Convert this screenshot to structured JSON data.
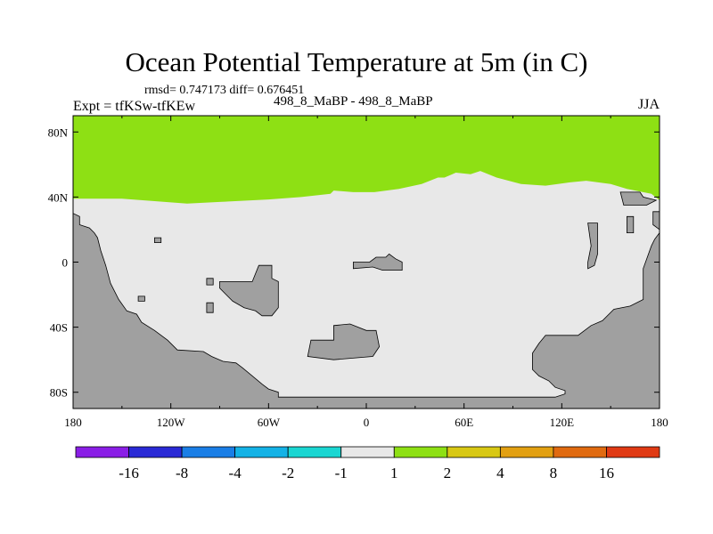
{
  "chart_data": {
    "type": "heatmap",
    "title": "Ocean Potential Temperature at 5m (in C)",
    "stats_text": "rmsd= 0.747173 diff= 0.676451",
    "left_label": "Expt = tfKSw-tfKEw",
    "center_label": "498_8_MaBP - 498_8_MaBP",
    "right_label": "JJA",
    "x_ticks": [
      {
        "value": -180,
        "label": "180"
      },
      {
        "value": -120,
        "label": "120W"
      },
      {
        "value": -60,
        "label": "60W"
      },
      {
        "value": 0,
        "label": "0"
      },
      {
        "value": 60,
        "label": "60E"
      },
      {
        "value": 120,
        "label": "120E"
      },
      {
        "value": 180,
        "label": "180"
      }
    ],
    "y_ticks": [
      {
        "value": 80,
        "label": "80N"
      },
      {
        "value": 40,
        "label": "40N"
      },
      {
        "value": 0,
        "label": "0"
      },
      {
        "value": -40,
        "label": "40S"
      },
      {
        "value": -80,
        "label": "80S"
      }
    ],
    "xlim": [
      -180,
      180
    ],
    "ylim": [
      -90,
      90
    ],
    "colorbar": {
      "colors": [
        "#8a1ee6",
        "#2a2ad6",
        "#1a7ee6",
        "#14b2e6",
        "#1ad6d2",
        "#e8e8e8",
        "#8ee014",
        "#d8c814",
        "#e2a012",
        "#e06a10",
        "#e03a14"
      ],
      "labels": [
        "-16",
        "-8",
        "-4",
        "-2",
        "-1",
        "1",
        "2",
        "4",
        "8",
        "16"
      ]
    },
    "regions": {
      "warm_north_color": "#8ee014",
      "ocean_color": "#e8e8e8",
      "land_color": "#a0a0a0",
      "north_boundary": [
        [
          -180,
          39
        ],
        [
          -150,
          39
        ],
        [
          -130,
          37.5
        ],
        [
          -110,
          36
        ],
        [
          -90,
          37
        ],
        [
          -60,
          38.5
        ],
        [
          -40,
          40
        ],
        [
          -22,
          42
        ],
        [
          -20,
          44
        ],
        [
          -8,
          43
        ],
        [
          5,
          43
        ],
        [
          20,
          45
        ],
        [
          34,
          48
        ],
        [
          44,
          52
        ],
        [
          48,
          52
        ],
        [
          55,
          55
        ],
        [
          64,
          54
        ],
        [
          70,
          56
        ],
        [
          80,
          52
        ],
        [
          95,
          48
        ],
        [
          110,
          47
        ],
        [
          125,
          49
        ],
        [
          135,
          50
        ],
        [
          150,
          48
        ],
        [
          160,
          45
        ],
        [
          175,
          42
        ],
        [
          180,
          38
        ]
      ],
      "land_west": [
        [
          -180,
          30
        ],
        [
          -176,
          28
        ],
        [
          -176,
          23
        ],
        [
          -170,
          21
        ],
        [
          -167,
          18
        ],
        [
          -165,
          15
        ],
        [
          -163,
          7
        ],
        [
          -160,
          -2
        ],
        [
          -157,
          -13
        ],
        [
          -152,
          -23
        ],
        [
          -147,
          -30
        ],
        [
          -141,
          -32
        ],
        [
          -138,
          -37
        ],
        [
          -130,
          -42
        ],
        [
          -122,
          -48
        ],
        [
          -116,
          -54
        ],
        [
          -100,
          -55
        ],
        [
          -95,
          -58
        ],
        [
          -88,
          -61
        ],
        [
          -80,
          -62
        ],
        [
          -76,
          -65
        ],
        [
          -70,
          -70
        ],
        [
          -64,
          -75
        ],
        [
          -60,
          -78
        ],
        [
          -54,
          -80
        ],
        [
          -54,
          -83
        ],
        [
          116,
          -83
        ],
        [
          122,
          -81
        ],
        [
          122,
          -79
        ],
        [
          116,
          -77
        ],
        [
          112,
          -73
        ],
        [
          106,
          -70
        ],
        [
          102,
          -66
        ],
        [
          102,
          -56
        ],
        [
          106,
          -50
        ],
        [
          110,
          -45
        ],
        [
          130,
          -45
        ],
        [
          138,
          -39
        ],
        [
          145,
          -36
        ],
        [
          152,
          -29
        ],
        [
          162,
          -27
        ],
        [
          170,
          -23
        ],
        [
          170,
          -4
        ],
        [
          175,
          10
        ],
        [
          177,
          14
        ],
        [
          180,
          18
        ],
        [
          180,
          -90
        ],
        [
          -180,
          -90
        ]
      ],
      "land_north_east": [
        [
          156,
          43
        ],
        [
          168,
          43
        ],
        [
          170,
          40
        ],
        [
          178,
          38
        ],
        [
          172,
          35
        ],
        [
          158,
          35
        ]
      ],
      "land_east_coast": [
        [
          176,
          31
        ],
        [
          180,
          31
        ],
        [
          180,
          20
        ],
        [
          176,
          23
        ]
      ],
      "islands": [
        [
          [
            -130,
            15
          ],
          [
            -126,
            15
          ],
          [
            -126,
            12
          ],
          [
            -130,
            12
          ]
        ],
        [
          [
            -140,
            -21
          ],
          [
            -136,
            -21
          ],
          [
            -136,
            -24
          ],
          [
            -140,
            -24
          ]
        ],
        [
          [
            -98,
            -10
          ],
          [
            -94,
            -10
          ],
          [
            -94,
            -14
          ],
          [
            -98,
            -14
          ]
        ],
        [
          [
            -98,
            -25
          ],
          [
            -94,
            -25
          ],
          [
            -94,
            -31
          ],
          [
            -98,
            -31
          ]
        ],
        [
          [
            -90,
            -12
          ],
          [
            -70,
            -12
          ],
          [
            -66,
            -2
          ],
          [
            -58,
            -2
          ],
          [
            -58,
            -10
          ],
          [
            -54,
            -12
          ],
          [
            -54,
            -28
          ],
          [
            -58,
            -33
          ],
          [
            -64,
            -33
          ],
          [
            -68,
            -30
          ],
          [
            -75,
            -28
          ],
          [
            -82,
            -24
          ],
          [
            -86,
            -20
          ],
          [
            -90,
            -16
          ]
        ],
        [
          [
            -8,
            0
          ],
          [
            2,
            0
          ],
          [
            6,
            3
          ],
          [
            12,
            3
          ],
          [
            14,
            5
          ],
          [
            18,
            2
          ],
          [
            22,
            0
          ],
          [
            22,
            -5
          ],
          [
            10,
            -5
          ],
          [
            4,
            -3
          ],
          [
            -8,
            -4
          ]
        ],
        [
          [
            -34,
            -48
          ],
          [
            -20,
            -48
          ],
          [
            -20,
            -39
          ],
          [
            -10,
            -38
          ],
          [
            0,
            -42
          ],
          [
            6,
            -42
          ],
          [
            8,
            -52
          ],
          [
            4,
            -58
          ],
          [
            -20,
            -60
          ],
          [
            -36,
            -58
          ]
        ],
        [
          [
            136,
            24
          ],
          [
            142,
            24
          ],
          [
            142,
            5
          ],
          [
            140,
            -2
          ],
          [
            136,
            -4
          ],
          [
            136,
            0
          ],
          [
            138,
            10
          ]
        ],
        [
          [
            160,
            28
          ],
          [
            164,
            28
          ],
          [
            164,
            18
          ],
          [
            160,
            18
          ]
        ]
      ]
    }
  }
}
